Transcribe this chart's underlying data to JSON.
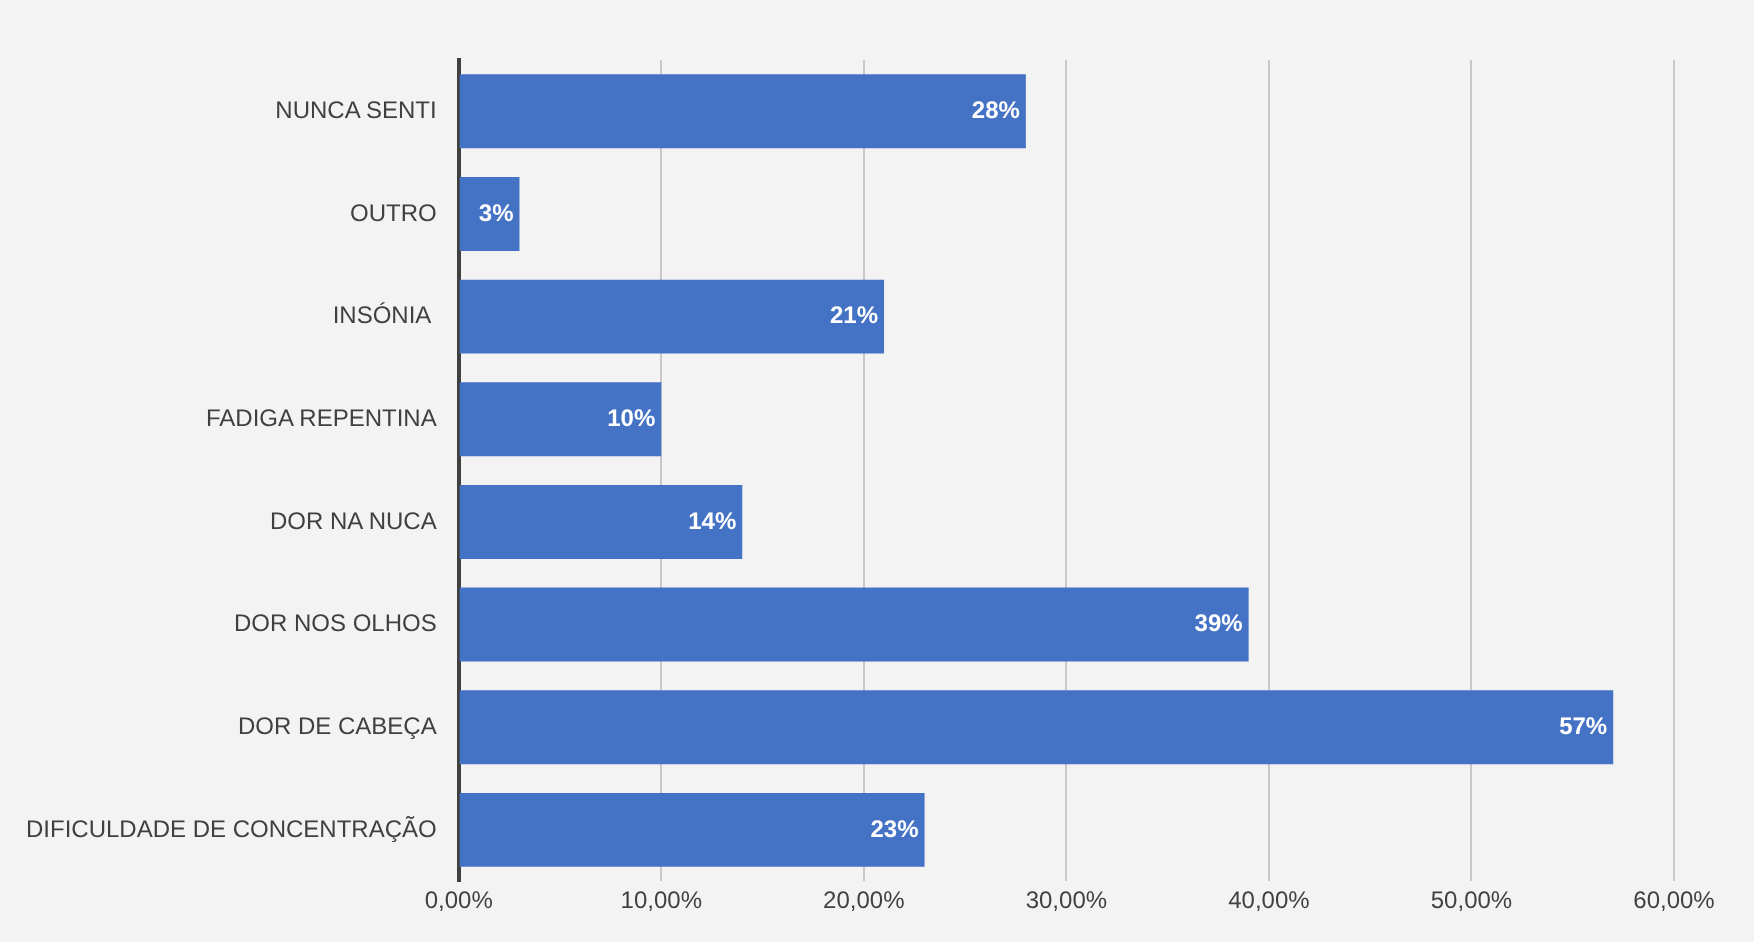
{
  "chart_data": {
    "type": "bar",
    "orientation": "horizontal",
    "categories": [
      "NUNCA SENTI",
      "OUTRO",
      "INSÓNIA ",
      "FADIGA REPENTINA",
      "DOR NA NUCA",
      "DOR NOS OLHOS",
      "DOR DE CABEÇA",
      "DIFICULDADE DE CONCENTRAÇÃO"
    ],
    "values": [
      28,
      3,
      21,
      10,
      14,
      39,
      57,
      23
    ],
    "value_labels": [
      "28%",
      "3%",
      "21%",
      "10%",
      "14%",
      "39%",
      "57%",
      "23%"
    ],
    "color": "#4472c4",
    "xlim": [
      0,
      60
    ],
    "xticks": [
      {
        "value": 0,
        "label": "0,00%"
      },
      {
        "value": 10,
        "label": "10,00%"
      },
      {
        "value": 20,
        "label": "20,00%"
      },
      {
        "value": 30,
        "label": "30,00%"
      },
      {
        "value": 40,
        "label": "40,00%"
      },
      {
        "value": 50,
        "label": "50,00%"
      },
      {
        "value": 60,
        "label": "60,00%"
      }
    ],
    "grid": "x"
  }
}
